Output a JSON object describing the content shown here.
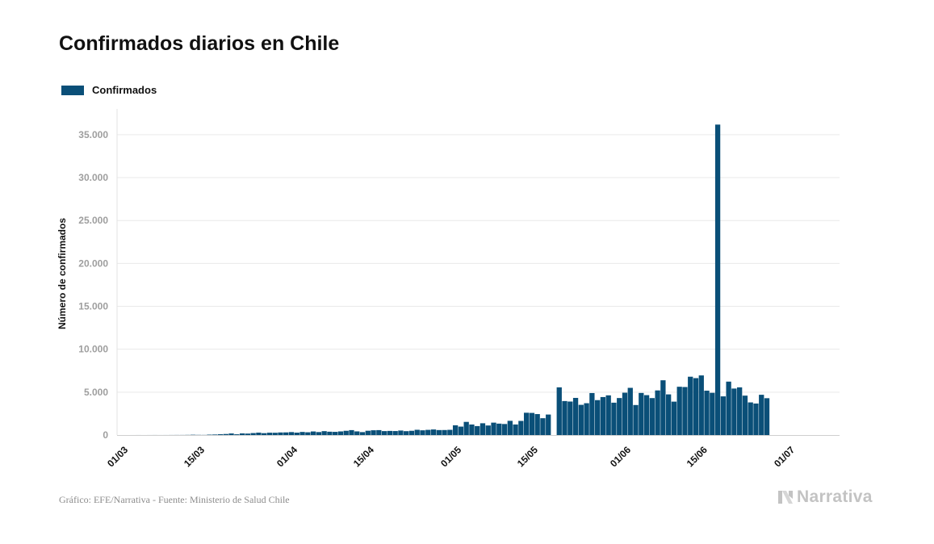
{
  "chart_data": {
    "type": "bar",
    "title": "Confirmados diarios en Chile",
    "ylabel": "Número de confirmados",
    "xlabel": "",
    "ylim": [
      0,
      38000
    ],
    "yticks": [
      0,
      5000,
      10000,
      15000,
      20000,
      25000,
      30000,
      35000
    ],
    "ytick_labels": [
      "0",
      "5.000",
      "10.000",
      "15.000",
      "20.000",
      "25.000",
      "30.000",
      "35.000"
    ],
    "xtick_labels": [
      {
        "label": "01/03",
        "index": 0
      },
      {
        "label": "15/03",
        "index": 14
      },
      {
        "label": "01/04",
        "index": 31
      },
      {
        "label": "15/04",
        "index": 45
      },
      {
        "label": "01/05",
        "index": 61
      },
      {
        "label": "15/05",
        "index": 75
      },
      {
        "label": "01/06",
        "index": 92
      },
      {
        "label": "15/06",
        "index": 106
      },
      {
        "label": "01/07",
        "index": 122
      }
    ],
    "first_date": "01/03",
    "series": [
      {
        "name": "Confirmados",
        "color": "#0a4f78",
        "values": [
          0,
          0,
          1,
          3,
          1,
          3,
          5,
          3,
          4,
          7,
          10,
          10,
          17,
          33,
          19,
          14,
          46,
          61,
          93,
          122,
          183,
          88,
          191,
          170,
          229,
          281,
          218,
          272,
          265,
          300,
          307,
          343,
          281,
          359,
          321,
          417,
          346,
          453,
          389,
          370,
          422,
          494,
          573,
          426,
          341,
          500,
          556,
          573,
          459,
          482,
          464,
          525,
          451,
          496,
          612,
          552,
          604,
          649,
          580,
          584,
          608,
          1137,
          983,
          1533,
          1228,
          1044,
          1373,
          1114,
          1445,
          1331,
          1286,
          1657,
          1232,
          1647,
          2599,
          2579,
          2442,
          1962,
          2389,
          0,
          5558,
          3961,
          3904,
          4328,
          3520,
          3709,
          4895,
          4068,
          4428,
          4626,
          3771,
          4313,
          4934,
          5501,
          3499,
          4906,
          4650,
          4307,
          5200,
          6382,
          4740,
          3893,
          5627,
          5596,
          6798,
          6633,
          6947,
          5170,
          4922,
          36179,
          4507,
          6226,
          5419,
          5557,
          4593,
          3803,
          3673,
          4692,
          4294
        ]
      }
    ]
  },
  "legend": {
    "label": "Confirmados",
    "color": "#0a4f78"
  },
  "footer": {
    "source": "Gráfico: EFE/Narrativa - Fuente: Ministerio de Salud Chile",
    "logo": "Narrativa"
  }
}
